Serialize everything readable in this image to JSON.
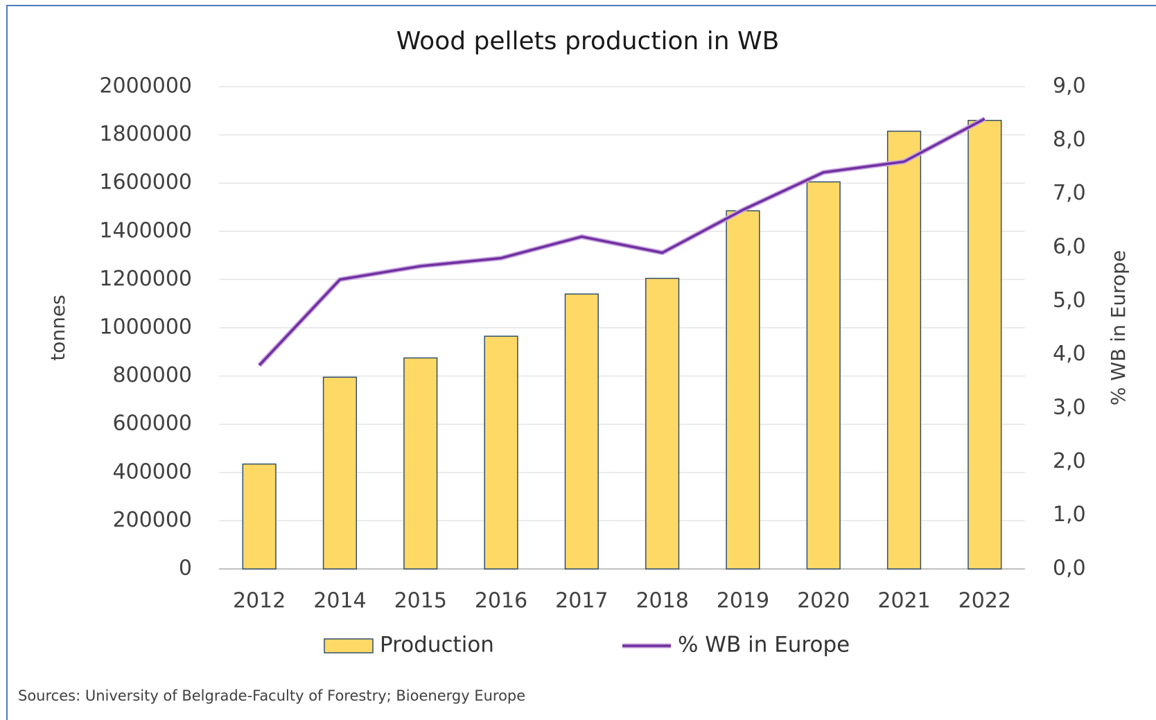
{
  "chart_data": {
    "type": "bar",
    "title": "Wood pellets production in WB",
    "source": "Sources: University of Belgrade-Faculty of Forestry; Bioenergy Europe",
    "categories": [
      "2012",
      "2014",
      "2015",
      "2016",
      "2017",
      "2018",
      "2019",
      "2020",
      "2021",
      "2022"
    ],
    "series": [
      {
        "name": "Production",
        "type": "bar",
        "color": "#ffd966",
        "values": [
          435000,
          795000,
          875000,
          965000,
          1140000,
          1205000,
          1485000,
          1605000,
          1815000,
          1860000
        ]
      },
      {
        "name": "% WB in Europe",
        "type": "line",
        "axis": "y2",
        "color": "#7030a0",
        "values": [
          3.8,
          5.4,
          5.65,
          5.8,
          6.2,
          5.9,
          6.7,
          7.4,
          7.6,
          8.4
        ]
      }
    ],
    "ylabel": "tonnes",
    "y2label": "% WB  in Europe",
    "ylim": [
      0,
      2000000
    ],
    "yticks": [
      0,
      200000,
      400000,
      600000,
      800000,
      1000000,
      1200000,
      1400000,
      1600000,
      1800000,
      2000000
    ],
    "y2lim": [
      0,
      9
    ],
    "y2ticks": [
      {
        "value": 0,
        "label": "0,0"
      },
      {
        "value": 1,
        "label": "1,0"
      },
      {
        "value": 2,
        "label": "2,0"
      },
      {
        "value": 3,
        "label": "3,0"
      },
      {
        "value": 4,
        "label": "4,0"
      },
      {
        "value": 5,
        "label": "5,0"
      },
      {
        "value": 6,
        "label": "6,0"
      },
      {
        "value": 7,
        "label": "7,0"
      },
      {
        "value": 8,
        "label": "8,0"
      },
      {
        "value": 9,
        "label": "9,0"
      }
    ],
    "grid": true,
    "legend": "bottom"
  }
}
